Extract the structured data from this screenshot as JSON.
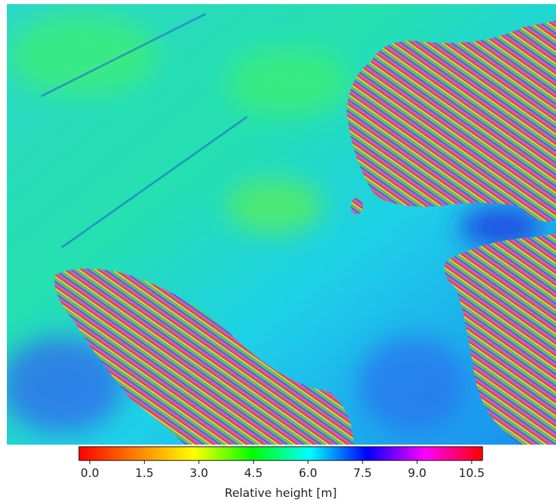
{
  "chart_data": {
    "type": "image",
    "colorbar_label": "Relative height [m]",
    "zlim": [
      -0.3,
      10.8
    ],
    "zticks": [
      {
        "value": 0,
        "label": "0.0"
      },
      {
        "value": 1.5,
        "label": "1.5"
      },
      {
        "value": 3,
        "label": "3.0"
      },
      {
        "value": 4.5,
        "label": "4.5"
      },
      {
        "value": 6,
        "label": "6.0"
      },
      {
        "value": 7.5,
        "label": "7.5"
      },
      {
        "value": 9,
        "label": "9.0"
      },
      {
        "value": 10.5,
        "label": "10.5"
      }
    ],
    "colormap": [
      "#ff0000",
      "#ff8000",
      "#ffff00",
      "#00ff00",
      "#00ffff",
      "#0000ff",
      "#ff00ff",
      "#ff0000"
    ]
  }
}
